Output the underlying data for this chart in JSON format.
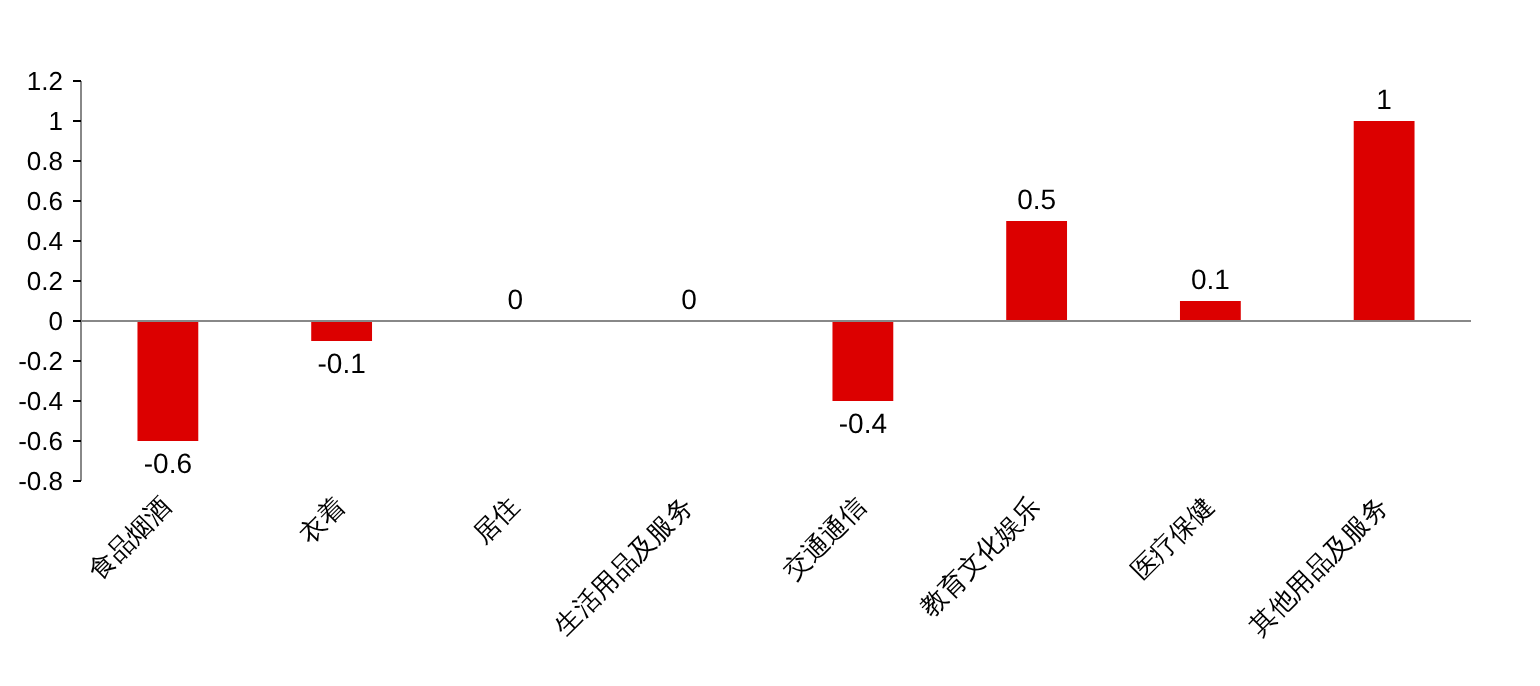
{
  "chart_data": {
    "type": "bar",
    "categories": [
      "食品烟酒",
      "衣着",
      "居住",
      "生活用品及服务",
      "交通通信",
      "教育文化娱乐",
      "医疗保健",
      "其他用品及服务"
    ],
    "values": [
      -0.6,
      -0.1,
      0,
      0,
      -0.4,
      0.5,
      0.1,
      1
    ],
    "color": "#dc0000",
    "ylim": [
      -0.8,
      1.2
    ],
    "yticks": [
      -0.8,
      -0.6,
      -0.4,
      -0.2,
      0,
      0.2,
      0.4,
      0.6,
      0.8,
      1,
      1.2
    ],
    "data_labels": true
  }
}
